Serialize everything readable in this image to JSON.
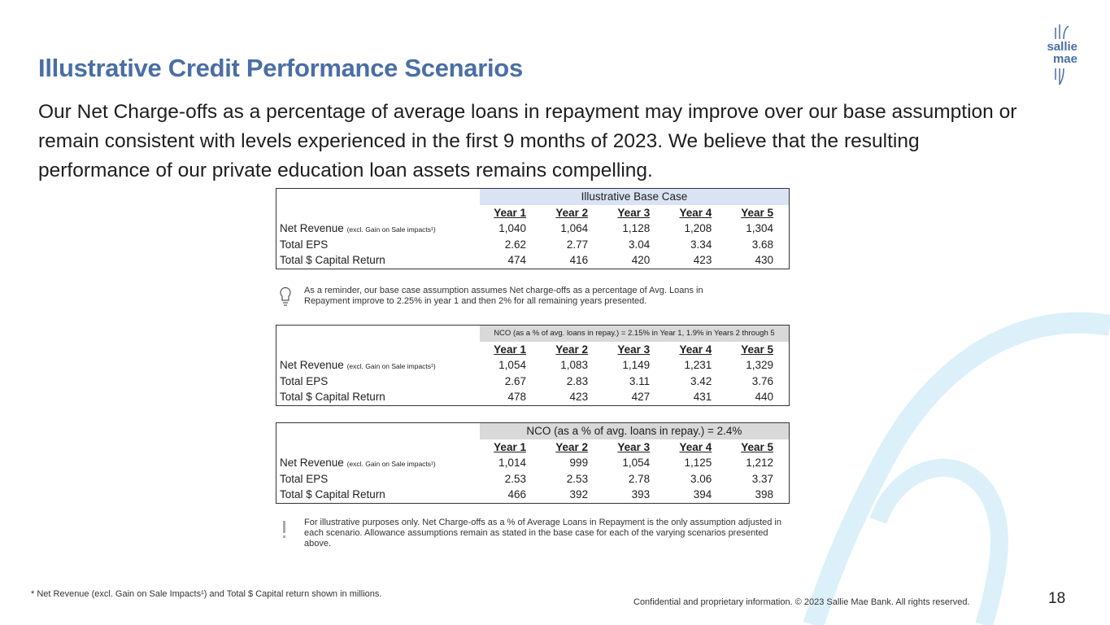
{
  "header": {
    "title": "Illustrative Credit Performance Scenarios",
    "intro": "Our Net Charge-offs as a percentage of average loans in repayment may improve over our base assumption or remain consistent with levels experienced in the first 9 months of 2023.  We believe that the resulting performance of our private education loan assets remains compelling.",
    "logo": {
      "line1": "sallie",
      "line2": "mae"
    }
  },
  "tables": [
    {
      "header": "Illustrative Base Case",
      "columns": [
        "Year 1",
        "Year 2",
        "Year 3",
        "Year 4",
        "Year 5"
      ],
      "rows": [
        {
          "label": "Net Revenue",
          "note": "(excl. Gain on Sale impacts¹)",
          "values": [
            "1,040",
            "1,064",
            "1,128",
            "1,208",
            "1,304"
          ]
        },
        {
          "label": "Total EPS",
          "values": [
            "2.62",
            "2.77",
            "3.04",
            "3.34",
            "3.68"
          ]
        },
        {
          "label": "Total $ Capital Return",
          "values": [
            "474",
            "416",
            "420",
            "423",
            "430"
          ]
        }
      ]
    },
    {
      "header": "NCO (as a % of avg. loans in repay.) = 2.15% in Year 1, 1.9% in Years 2 through 5",
      "columns": [
        "Year 1",
        "Year 2",
        "Year 3",
        "Year 4",
        "Year 5"
      ],
      "rows": [
        {
          "label": "Net Revenue",
          "note": "(excl. Gain on Sale impacts¹)",
          "values": [
            "1,054",
            "1,083",
            "1,149",
            "1,231",
            "1,329"
          ]
        },
        {
          "label": "Total EPS",
          "values": [
            "2.67",
            "2.83",
            "3.11",
            "3.42",
            "3.76"
          ]
        },
        {
          "label": "Total $ Capital Return",
          "values": [
            "478",
            "423",
            "427",
            "431",
            "440"
          ]
        }
      ]
    },
    {
      "header": "NCO (as a % of avg. loans in repay.) = 2.4%",
      "columns": [
        "Year 1",
        "Year 2",
        "Year 3",
        "Year 4",
        "Year 5"
      ],
      "rows": [
        {
          "label": "Net Revenue",
          "note": "(excl. Gain on Sale impacts¹)",
          "values": [
            "1,014",
            "999",
            "1,054",
            "1,125",
            "1,212"
          ]
        },
        {
          "label": "Total EPS",
          "values": [
            "2.53",
            "2.53",
            "2.78",
            "3.06",
            "3.37"
          ]
        },
        {
          "label": "Total $ Capital Return",
          "values": [
            "466",
            "392",
            "393",
            "394",
            "398"
          ]
        }
      ]
    }
  ],
  "callouts": [
    "As a reminder, our base case assumption assumes Net charge-offs as a percentage of Avg. Loans in Repayment improve to 2.25% in year 1 and then 2% for all remaining years presented.",
    "For illustrative purposes only. Net Charge-offs as a % of Average Loans in Repayment is the only assumption adjusted in each scenario. Allowance assumptions remain as stated in the base case for each of the varying scenarios presented above."
  ],
  "footer": {
    "footnote": "* Net Revenue (excl. Gain on Sale Impacts¹) and Total $ Capital return shown in millions.",
    "confidential": "Confidential and proprietary information. © 2023 Sallie Mae Bank. All rights reserved.",
    "page": "18"
  }
}
